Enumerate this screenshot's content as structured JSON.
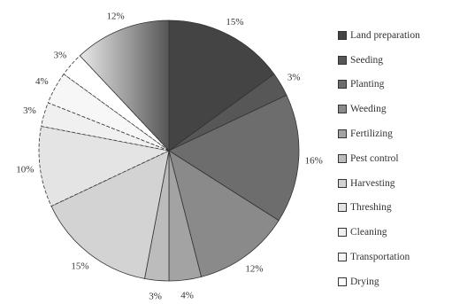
{
  "chart_data": {
    "type": "pie",
    "title": "",
    "slices": [
      {
        "label": "Land preparation",
        "value": 15,
        "text": "15%",
        "color": "#444444",
        "style": "solid"
      },
      {
        "label": "Seeding",
        "value": 3,
        "text": "3%",
        "color": "#575757",
        "style": "solid"
      },
      {
        "label": "Planting",
        "value": 16,
        "text": "16%",
        "color": "#6d6d6d",
        "style": "solid"
      },
      {
        "label": "Weeding",
        "value": 12,
        "text": "12%",
        "color": "#8a8a8a",
        "style": "solid"
      },
      {
        "label": "Fertilizing",
        "value": 4,
        "text": "4%",
        "color": "#a3a3a3",
        "style": "solid"
      },
      {
        "label": "Pest control",
        "value": 3,
        "text": "3%",
        "color": "#bcbcbc",
        "style": "solid"
      },
      {
        "label": "Harvesting",
        "value": 15,
        "text": "15%",
        "color": "#d3d3d3",
        "style": "solid"
      },
      {
        "label": "Threshing",
        "value": 10,
        "text": "10%",
        "color": "#e4e4e4",
        "style": "dashed"
      },
      {
        "label": "Cleaning",
        "value": 3,
        "text": "3%",
        "color": "#f0f0f0",
        "style": "dashed"
      },
      {
        "label": "Transportation",
        "value": 4,
        "text": "4%",
        "color": "#f7f7f7",
        "style": "dashed"
      },
      {
        "label": "Drying",
        "value": 3,
        "text": "3%",
        "color": "#ffffff",
        "style": "dashed"
      },
      {
        "label": "",
        "value": 12,
        "text": "12%",
        "color": "#b5b5b5",
        "style": "gradient"
      }
    ],
    "legend": {
      "position": "right",
      "items": [
        {
          "label": "Land preparation",
          "color": "#444444"
        },
        {
          "label": "Seeding",
          "color": "#575757"
        },
        {
          "label": "Planting",
          "color": "#6d6d6d"
        },
        {
          "label": "Weeding",
          "color": "#8a8a8a"
        },
        {
          "label": "Fertilizing",
          "color": "#a3a3a3"
        },
        {
          "label": "Pest control",
          "color": "#bcbcbc"
        },
        {
          "label": "Harvesting",
          "color": "#d3d3d3"
        },
        {
          "label": "Threshing",
          "color": "#e4e4e4"
        },
        {
          "label": "Cleaning",
          "color": "#f0f0f0"
        },
        {
          "label": "Transportation",
          "color": "#f7f7f7"
        },
        {
          "label": "Drying",
          "color": "#ffffff"
        }
      ]
    }
  }
}
